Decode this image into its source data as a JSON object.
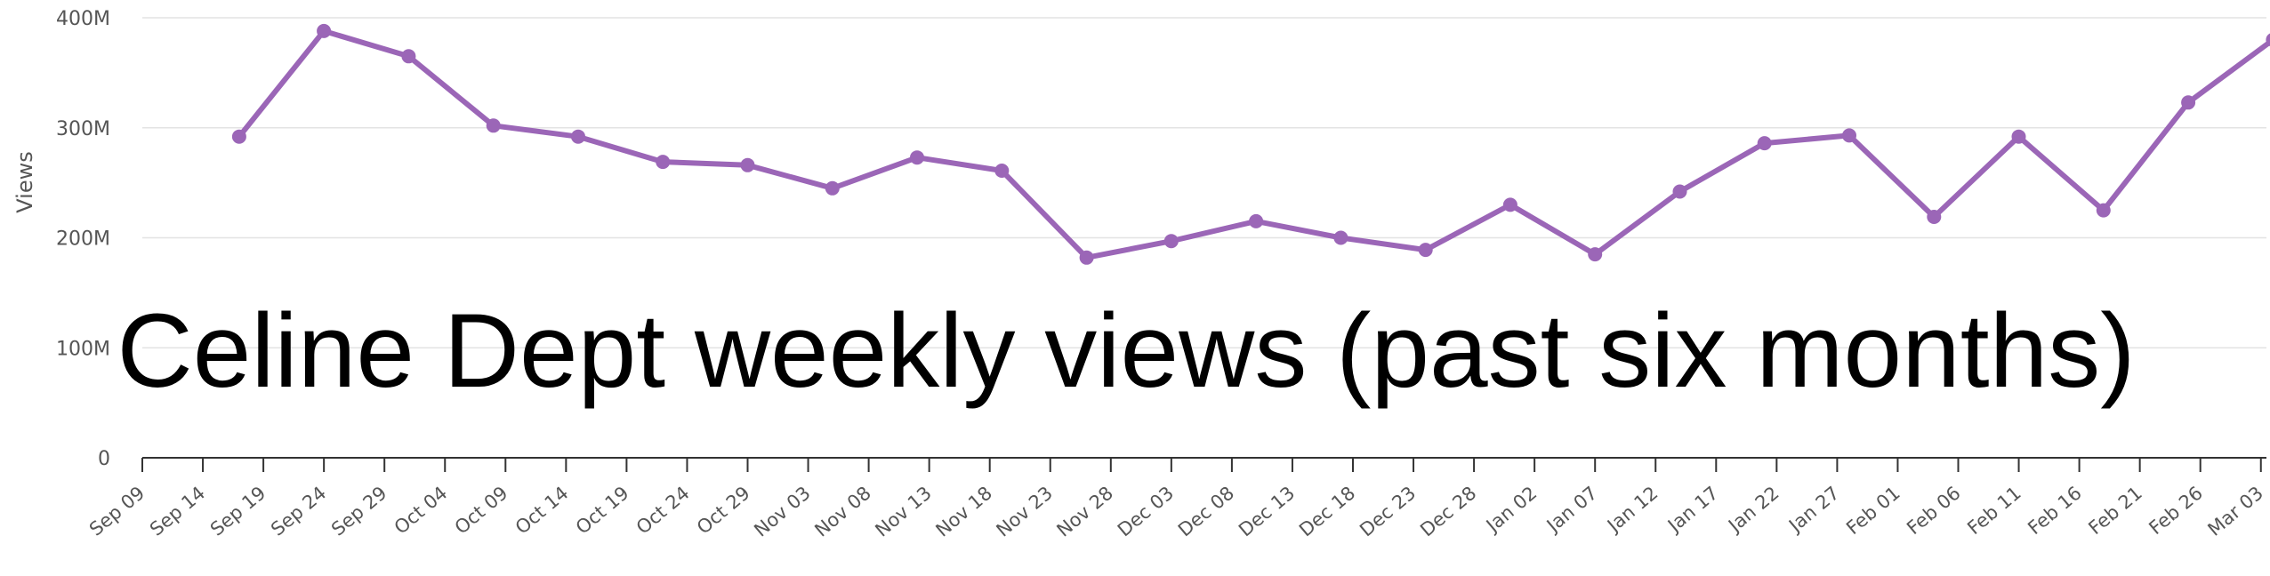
{
  "chart_data": {
    "type": "line",
    "title": "Celine Dept weekly views (past six months)",
    "ylabel": "Views",
    "xlabel": "",
    "ylim": [
      0,
      400000000
    ],
    "yticks": [
      {
        "value": 0,
        "label": "0"
      },
      {
        "value": 100000000,
        "label": "100M"
      },
      {
        "value": 200000000,
        "label": "200M"
      },
      {
        "value": 300000000,
        "label": "300M"
      },
      {
        "value": 400000000,
        "label": "400M"
      }
    ],
    "xtick_labels": [
      "Sep 09",
      "Sep 14",
      "Sep 19",
      "Sep 24",
      "Sep 29",
      "Oct 04",
      "Oct 09",
      "Oct 14",
      "Oct 19",
      "Oct 24",
      "Oct 29",
      "Nov 03",
      "Nov 08",
      "Nov 13",
      "Nov 18",
      "Nov 23",
      "Nov 28",
      "Dec 03",
      "Dec 08",
      "Dec 13",
      "Dec 18",
      "Dec 23",
      "Dec 28",
      "Jan 02",
      "Jan 07",
      "Jan 12",
      "Jan 17",
      "Jan 22",
      "Jan 27",
      "Feb 01",
      "Feb 06",
      "Feb 11",
      "Feb 16",
      "Feb 21",
      "Feb 26",
      "Mar 03"
    ],
    "grid": true,
    "series": [
      {
        "color": "#9b66b7",
        "points": [
          {
            "x": "2023-09-17",
            "y": 292000000
          },
          {
            "x": "2023-09-24",
            "y": 388000000
          },
          {
            "x": "2023-10-01",
            "y": 365000000
          },
          {
            "x": "2023-10-08",
            "y": 302000000
          },
          {
            "x": "2023-10-15",
            "y": 292000000
          },
          {
            "x": "2023-10-22",
            "y": 269000000
          },
          {
            "x": "2023-10-29",
            "y": 266000000
          },
          {
            "x": "2023-11-05",
            "y": 245000000
          },
          {
            "x": "2023-11-12",
            "y": 273000000
          },
          {
            "x": "2023-11-19",
            "y": 261000000
          },
          {
            "x": "2023-11-26",
            "y": 182000000
          },
          {
            "x": "2023-12-03",
            "y": 197000000
          },
          {
            "x": "2023-12-10",
            "y": 215000000
          },
          {
            "x": "2023-12-17",
            "y": 200000000
          },
          {
            "x": "2023-12-24",
            "y": 189000000
          },
          {
            "x": "2023-12-31",
            "y": 230000000
          },
          {
            "x": "2024-01-07",
            "y": 185000000
          },
          {
            "x": "2024-01-14",
            "y": 242000000
          },
          {
            "x": "2024-01-21",
            "y": 286000000
          },
          {
            "x": "2024-01-28",
            "y": 293000000
          },
          {
            "x": "2024-02-04",
            "y": 219000000
          },
          {
            "x": "2024-02-11",
            "y": 292000000
          },
          {
            "x": "2024-02-18",
            "y": 225000000
          },
          {
            "x": "2024-02-25",
            "y": 323000000
          },
          {
            "x": "2024-03-03",
            "y": 380000000
          }
        ]
      }
    ]
  }
}
